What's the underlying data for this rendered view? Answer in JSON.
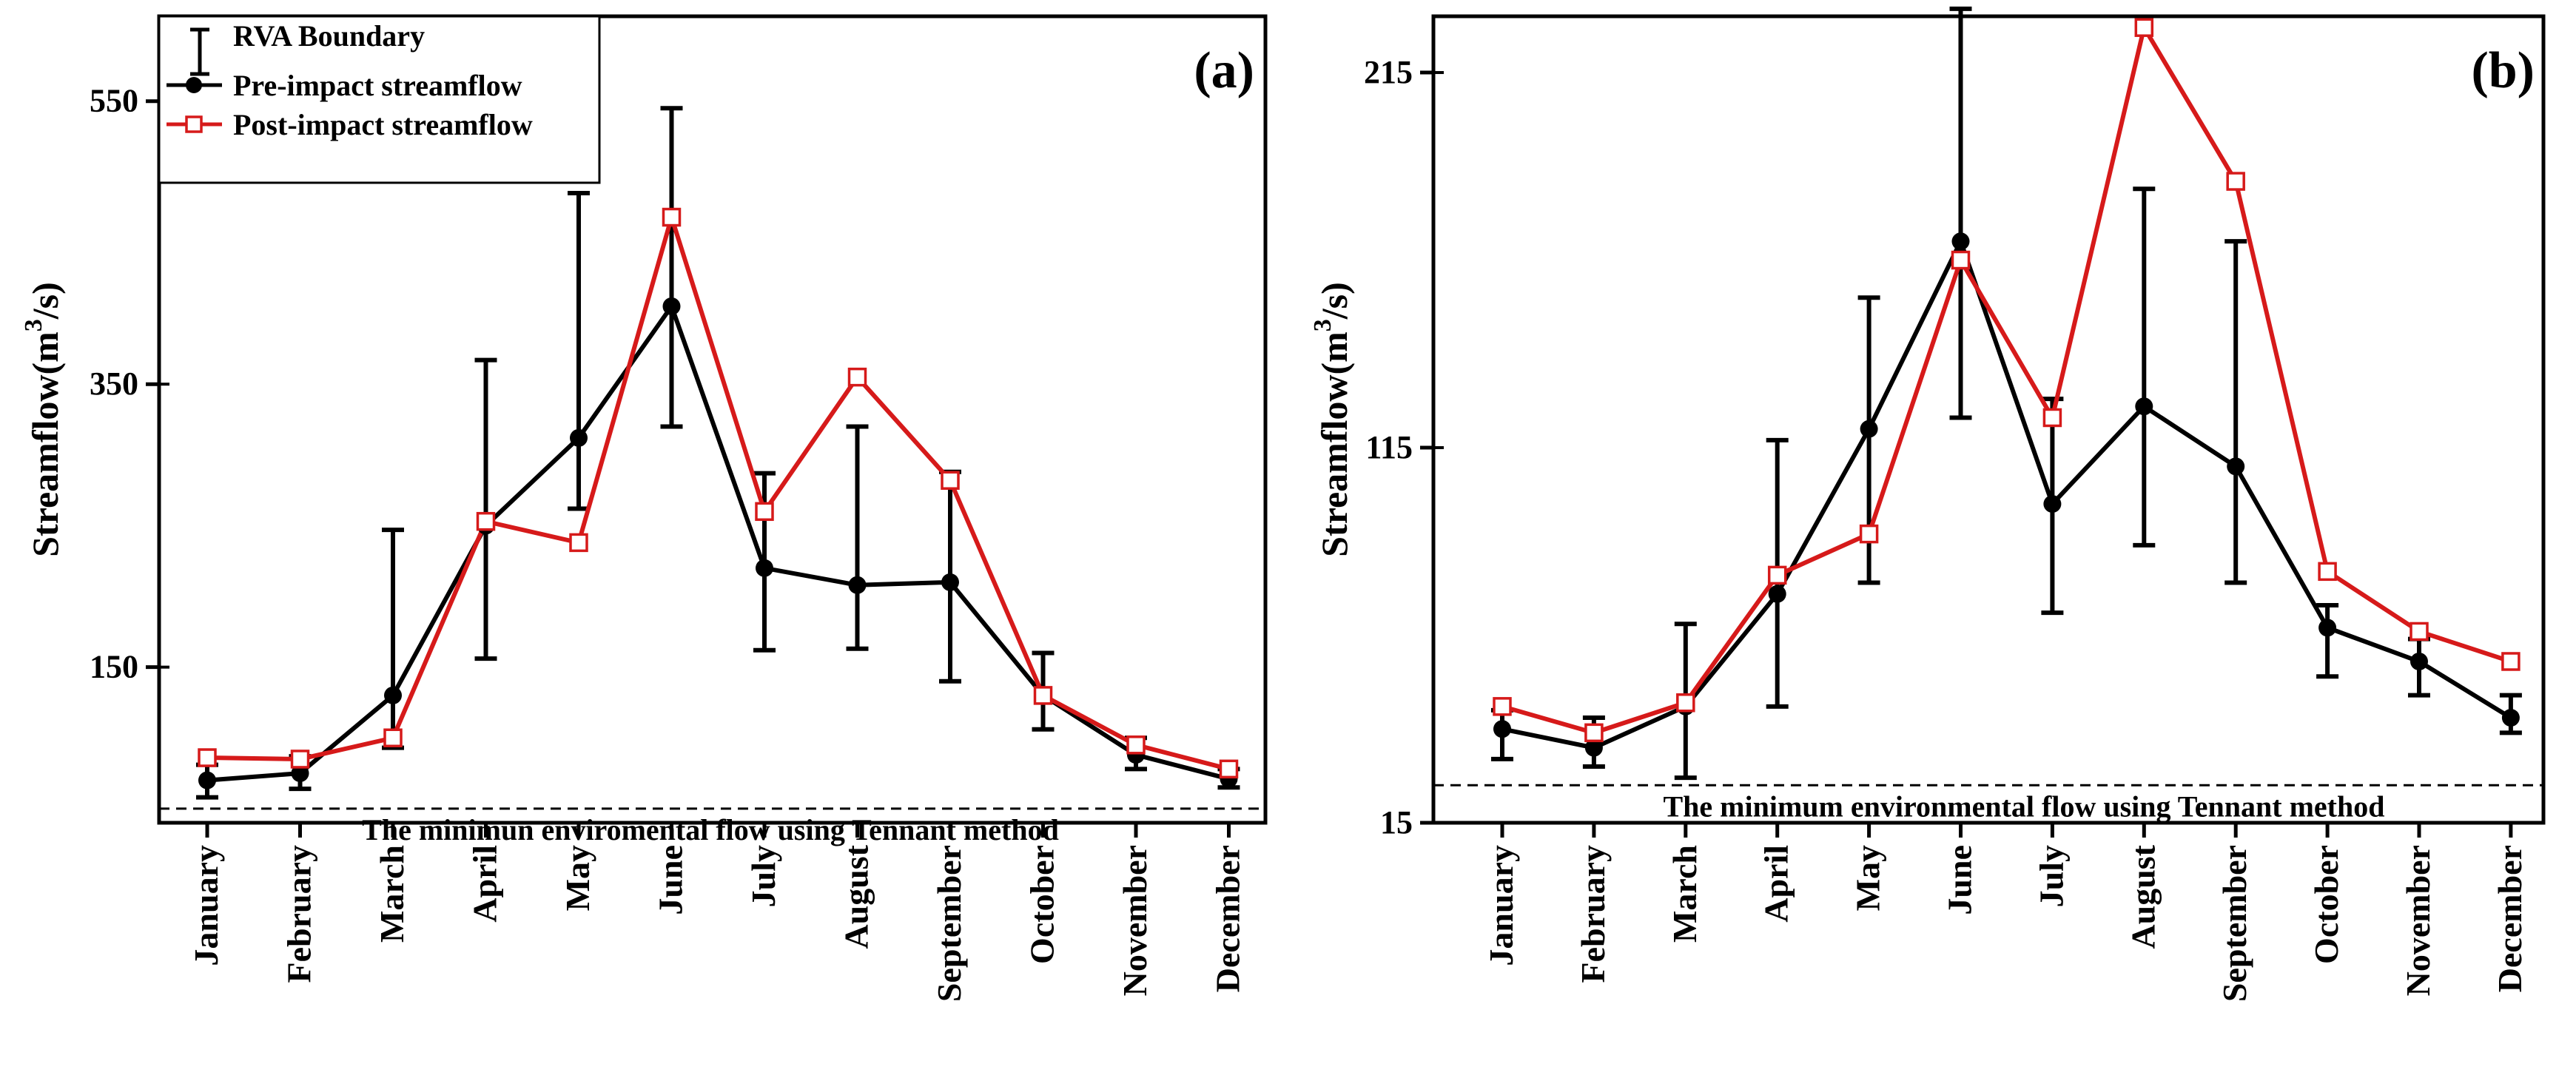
{
  "colors": {
    "pre": "#000000",
    "post": "#d61a1a",
    "axis": "#000000"
  },
  "chart_data": [
    {
      "type": "line",
      "panel_label": "(a)",
      "ylabel": "Streamflow(m3/s)",
      "ylabel_parts": {
        "main": "Streamflow(m",
        "sup": "3",
        "tail": "/s)"
      },
      "ylim": [
        40,
        610
      ],
      "yticks": [
        150,
        350,
        550
      ],
      "categories": [
        "January",
        "February",
        "March",
        "April",
        "May",
        "June",
        "July",
        "August",
        "September",
        "October",
        "November",
        "December"
      ],
      "series": [
        {
          "name": "Pre-impact streamflow",
          "marker": "filled-circle",
          "values": [
            70,
            75,
            130,
            250,
            312,
            405,
            220,
            208,
            210,
            130,
            88,
            71
          ],
          "error_low": [
            58,
            64,
            93,
            156,
            262,
            320,
            162,
            163,
            140,
            106,
            78,
            65
          ],
          "error_high": [
            81,
            87,
            247,
            367,
            485,
            545,
            287,
            320,
            288,
            160,
            100,
            78
          ]
        },
        {
          "name": "Post-impact streamflow",
          "marker": "open-square",
          "values": [
            86,
            85,
            100,
            253,
            238,
            468,
            260,
            355,
            282,
            130,
            95,
            78
          ]
        }
      ],
      "legend": {
        "position": "top-left",
        "entries": [
          "RVA Boundary",
          "Pre-impact streamflow",
          "Post-impact streamflow"
        ]
      },
      "threshold": {
        "value": 50,
        "label": "The minimun enviromental flow using Tennant method",
        "style": "dashed"
      }
    },
    {
      "type": "line",
      "panel_label": "(b)",
      "ylabel": "Streamflow(m3/s)",
      "ylabel_parts": {
        "main": "Streamflow(m",
        "sup": "3",
        "tail": "/s)"
      },
      "ylim": [
        15,
        230
      ],
      "yticks": [
        15,
        115,
        215
      ],
      "categories": [
        "January",
        "February",
        "March",
        "April",
        "May",
        "June",
        "July",
        "August",
        "September",
        "October",
        "November",
        "December"
      ],
      "series": [
        {
          "name": "Pre-impact streamflow",
          "marker": "filled-circle",
          "values": [
            40,
            35,
            46,
            76,
            120,
            170,
            100,
            126,
            110,
            67,
            58,
            43
          ],
          "error_low": [
            32,
            30,
            27,
            46,
            79,
            123,
            71,
            89,
            79,
            54,
            49,
            39
          ],
          "error_high": [
            45,
            43,
            68,
            117,
            155,
            232,
            128,
            184,
            170,
            73,
            64,
            49
          ]
        },
        {
          "name": "Post-impact streamflow",
          "marker": "open-square",
          "values": [
            46,
            39,
            47,
            81,
            92,
            165,
            123,
            227,
            186,
            82,
            66,
            58
          ]
        }
      ],
      "threshold": {
        "value": 25,
        "label": "The  minimum environmental flow using Tennant method",
        "style": "dashed"
      }
    }
  ]
}
